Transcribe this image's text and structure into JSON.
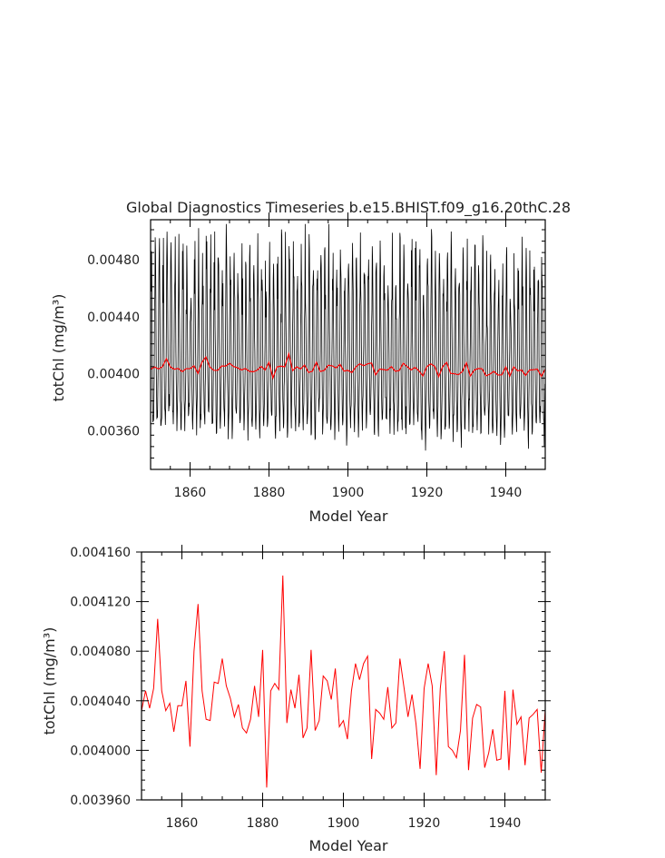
{
  "chart_data": [
    {
      "type": "line",
      "title": "Global Diagnostics Timeseries b.e15.BHIST.f09_g16.20thC.28",
      "xlabel": "Model Year",
      "ylabel": "totChl (mg/m³)",
      "xlim": [
        1850,
        1950
      ],
      "ylim": [
        0.00333,
        0.00508
      ],
      "x_ticks": [
        1860,
        1880,
        1900,
        1920,
        1940
      ],
      "y_ticks": [
        0.0036,
        0.004,
        0.0044,
        0.0048
      ],
      "y_tick_labels": [
        "0.00360",
        "0.00400",
        "0.00440",
        "0.00480"
      ],
      "series": [
        {
          "color": "#000000",
          "sampling": "monthly",
          "monthly_min": 0.00335,
          "monthly_max": 0.00505,
          "mean_level": 0.00404
        },
        {
          "color": "#ff0000",
          "sampling": "annual"
        }
      ]
    },
    {
      "type": "line",
      "title": "",
      "xlabel": "Model Year",
      "ylabel": "totChl (mg/m³)",
      "xlim": [
        1850,
        1950
      ],
      "ylim": [
        0.00396,
        0.00416
      ],
      "x_ticks": [
        1860,
        1880,
        1900,
        1920,
        1940
      ],
      "y_ticks": [
        0.00396,
        0.004,
        0.00404,
        0.00408,
        0.00412,
        0.00416
      ],
      "y_tick_labels": [
        "0.003960",
        "0.004000",
        "0.004040",
        "0.004080",
        "0.004120",
        "0.004160"
      ],
      "series": [
        {
          "color": "#ff0000",
          "x": [
            1850,
            1851,
            1852,
            1853,
            1854,
            1855,
            1856,
            1857,
            1858,
            1859,
            1860,
            1861,
            1862,
            1863,
            1864,
            1865,
            1866,
            1867,
            1868,
            1869,
            1870,
            1871,
            1872,
            1873,
            1874,
            1875,
            1876,
            1877,
            1878,
            1879,
            1880,
            1881,
            1882,
            1883,
            1884,
            1885,
            1886,
            1887,
            1888,
            1889,
            1890,
            1891,
            1892,
            1893,
            1894,
            1895,
            1896,
            1897,
            1898,
            1899,
            1900,
            1901,
            1902,
            1903,
            1904,
            1905,
            1906,
            1907,
            1908,
            1909,
            1910,
            1911,
            1912,
            1913,
            1914,
            1915,
            1916,
            1917,
            1918,
            1919,
            1920,
            1921,
            1922,
            1923,
            1924,
            1925,
            1926,
            1927,
            1928,
            1929,
            1930,
            1931,
            1932,
            1933,
            1934,
            1935,
            1936,
            1937,
            1938,
            1939,
            1940,
            1941,
            1942,
            1943,
            1944,
            1945,
            1946,
            1947,
            1948,
            1949,
            1950
          ],
          "values": [
            0.004032,
            0.004048,
            0.004034,
            0.00405,
            0.004106,
            0.004048,
            0.004032,
            0.004038,
            0.004015,
            0.004036,
            0.004036,
            0.004056,
            0.004003,
            0.00408,
            0.004118,
            0.004048,
            0.004025,
            0.004024,
            0.004055,
            0.004054,
            0.004074,
            0.004052,
            0.004042,
            0.004027,
            0.004037,
            0.004018,
            0.004014,
            0.004025,
            0.004052,
            0.004027,
            0.004081,
            0.00397,
            0.004048,
            0.004054,
            0.004049,
            0.004141,
            0.004022,
            0.004049,
            0.004034,
            0.004061,
            0.00401,
            0.004018,
            0.004081,
            0.004016,
            0.004024,
            0.00406,
            0.004056,
            0.004041,
            0.004066,
            0.004019,
            0.004024,
            0.004009,
            0.004048,
            0.00407,
            0.004057,
            0.00407,
            0.004076,
            0.003993,
            0.004033,
            0.00403,
            0.004025,
            0.004051,
            0.004018,
            0.004022,
            0.004074,
            0.004051,
            0.004027,
            0.004045,
            0.004021,
            0.003985,
            0.00405,
            0.00407,
            0.004052,
            0.00398,
            0.00405,
            0.00408,
            0.004003,
            0.004,
            0.003994,
            0.004016,
            0.004077,
            0.003984,
            0.004026,
            0.004037,
            0.004035,
            0.003986,
            0.003998,
            0.004017,
            0.003992,
            0.003993,
            0.004048,
            0.003984,
            0.004049,
            0.004021,
            0.004027,
            0.003988,
            0.004026,
            0.004029,
            0.004033,
            0.003982,
            0.004033
          ]
        }
      ]
    }
  ]
}
